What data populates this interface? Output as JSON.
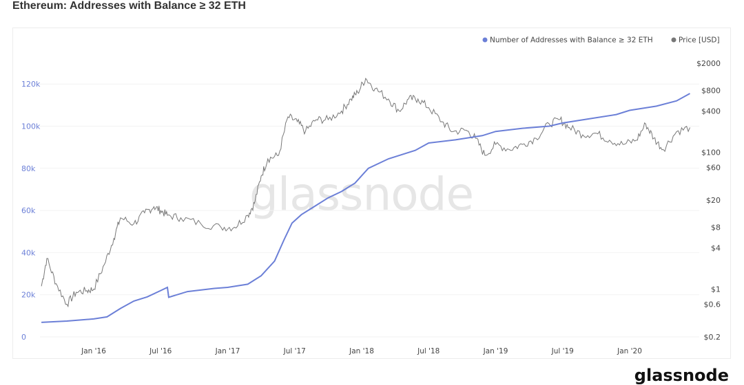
{
  "title": "Ethereum: Addresses with Balance ≥ 32 ETH",
  "watermark": "glassnode",
  "logo": "glassnode",
  "chart_data": {
    "type": "line",
    "title": "Ethereum: Addresses with Balance ≥ 32 ETH",
    "legend_position": "top-right",
    "x_ticks": [
      "Jan '16",
      "Jul '16",
      "Jan '17",
      "Jul '17",
      "Jan '18",
      "Jul '18",
      "Jan '19",
      "Jul '19",
      "Jan '20"
    ],
    "x_tick_values": [
      2016.0,
      2016.5,
      2017.0,
      2017.5,
      2018.0,
      2018.5,
      2019.0,
      2019.5,
      2020.0
    ],
    "xlim": [
      2015.61,
      2020.5
    ],
    "y_left": {
      "ticks": [
        "0",
        "20k",
        "40k",
        "60k",
        "80k",
        "100k",
        "120k"
      ],
      "tick_values": [
        0,
        20000,
        40000,
        60000,
        80000,
        100000,
        120000
      ],
      "ylim": [
        0,
        125000
      ],
      "scale": "linear"
    },
    "y_right": {
      "ticks": [
        "$2000",
        "$800",
        "$400",
        "$100",
        "$60",
        "$20",
        "$8",
        "$4",
        "$1",
        "$0.6",
        "$0.2"
      ],
      "tick_values": [
        2000,
        800,
        400,
        100,
        60,
        20,
        8,
        4,
        1,
        0.6,
        0.2
      ],
      "ylim": [
        0.2,
        2000
      ],
      "scale": "log"
    },
    "series": [
      {
        "name": "Number of Addresses with Balance ≥ 32 ETH",
        "color": "#6b7fd7",
        "axis": "left",
        "x": [
          2015.61,
          2015.8,
          2016.0,
          2016.1,
          2016.2,
          2016.3,
          2016.4,
          2016.5,
          2016.55,
          2016.56,
          2016.7,
          2016.9,
          2017.0,
          2017.15,
          2017.25,
          2017.35,
          2017.42,
          2017.48,
          2017.55,
          2017.65,
          2017.75,
          2017.85,
          2017.95,
          2018.05,
          2018.2,
          2018.4,
          2018.5,
          2018.7,
          2018.9,
          2019.0,
          2019.2,
          2019.4,
          2019.5,
          2019.7,
          2019.9,
          2020.0,
          2020.2,
          2020.35,
          2020.45
        ],
        "y": [
          6900,
          7500,
          8500,
          9500,
          13500,
          17000,
          19000,
          22000,
          23500,
          18800,
          21500,
          23000,
          23500,
          25000,
          29000,
          36000,
          46000,
          54000,
          58000,
          62000,
          66000,
          69000,
          73000,
          80000,
          84500,
          88500,
          92000,
          93500,
          95500,
          97500,
          99000,
          100000,
          101500,
          103500,
          105500,
          107500,
          109500,
          112000,
          115500
        ]
      },
      {
        "name": "Price [USD]",
        "color": "#777777",
        "axis": "right",
        "x": [
          2015.61,
          2015.65,
          2015.72,
          2015.8,
          2015.87,
          2015.95,
          2016.0,
          2016.08,
          2016.15,
          2016.2,
          2016.3,
          2016.38,
          2016.45,
          2016.5,
          2016.55,
          2016.65,
          2016.8,
          2016.95,
          2017.05,
          2017.15,
          2017.2,
          2017.25,
          2017.3,
          2017.38,
          2017.45,
          2017.52,
          2017.58,
          2017.66,
          2017.75,
          2017.85,
          2017.92,
          2017.97,
          2018.03,
          2018.1,
          2018.2,
          2018.28,
          2018.35,
          2018.42,
          2018.5,
          2018.6,
          2018.68,
          2018.78,
          2018.85,
          2018.92,
          2019.0,
          2019.1,
          2019.2,
          2019.3,
          2019.4,
          2019.48,
          2019.55,
          2019.65,
          2019.75,
          2019.85,
          2019.95,
          2020.05,
          2020.12,
          2020.18,
          2020.25,
          2020.35,
          2020.45
        ],
        "y": [
          1.1,
          2.8,
          1.2,
          0.6,
          0.9,
          0.95,
          1.0,
          2.3,
          5.5,
          11,
          9,
          13,
          16,
          14,
          12,
          11,
          9,
          8,
          8,
          12,
          18,
          45,
          80,
          90,
          330,
          280,
          200,
          300,
          300,
          400,
          600,
          750,
          1200,
          850,
          600,
          400,
          600,
          600,
          450,
          280,
          200,
          210,
          160,
          90,
          130,
          110,
          130,
          160,
          260,
          300,
          230,
          180,
          190,
          150,
          130,
          150,
          260,
          160,
          110,
          200,
          230
        ]
      }
    ]
  }
}
